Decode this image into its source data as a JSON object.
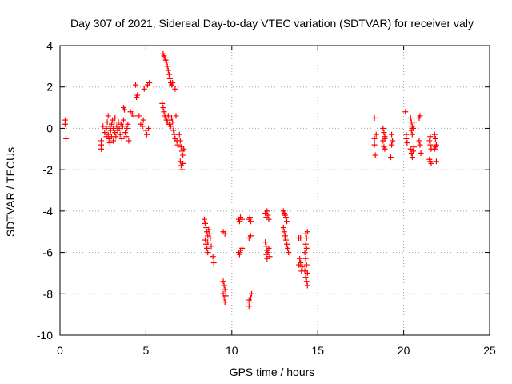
{
  "chart_data": {
    "type": "scatter",
    "title": "Day 307 of 2021, Sidereal Day-to-day VTEC variation (SDTVAR) for receiver valy",
    "xlabel": "GPS time / hours",
    "ylabel": "SDTVAR / TECUs",
    "xlim": [
      0,
      25
    ],
    "ylim": [
      -10,
      4
    ],
    "xticks": [
      0,
      5,
      10,
      15,
      20,
      25
    ],
    "yticks": [
      -10,
      -8,
      -6,
      -4,
      -2,
      0,
      2,
      4
    ],
    "grid": true,
    "legend": "none",
    "marker": "+",
    "color": "#ff0000",
    "series": [
      {
        "points": [
          [
            0.3,
            0.4
          ],
          [
            0.3,
            0.2
          ],
          [
            0.35,
            -0.5
          ],
          [
            2.4,
            -0.6
          ],
          [
            2.4,
            -0.8
          ],
          [
            2.4,
            -1.0
          ],
          [
            2.5,
            0.1
          ],
          [
            2.6,
            -0.2
          ],
          [
            2.7,
            -0.4
          ],
          [
            2.7,
            0.0
          ],
          [
            2.75,
            0.3
          ],
          [
            2.8,
            0.6
          ],
          [
            2.8,
            -0.3
          ],
          [
            2.85,
            -0.5
          ],
          [
            2.9,
            -0.7
          ],
          [
            2.9,
            0.1
          ],
          [
            2.95,
            -0.1
          ],
          [
            3.0,
            0.2
          ],
          [
            3.0,
            -0.4
          ],
          [
            3.05,
            0.4
          ],
          [
            3.1,
            -0.6
          ],
          [
            3.1,
            0.0
          ],
          [
            3.15,
            0.3
          ],
          [
            3.2,
            -0.2
          ],
          [
            3.2,
            0.5
          ],
          [
            3.25,
            -0.4
          ],
          [
            3.3,
            0.1
          ],
          [
            3.35,
            -0.1
          ],
          [
            3.4,
            0.3
          ],
          [
            3.45,
            0.0
          ],
          [
            3.5,
            -0.3
          ],
          [
            3.55,
            0.2
          ],
          [
            3.6,
            -0.5
          ],
          [
            3.65,
            0.1
          ],
          [
            3.7,
            0.4
          ],
          [
            3.7,
            1.0
          ],
          [
            3.75,
            0.9
          ],
          [
            3.8,
            -0.2
          ],
          [
            3.85,
            -0.4
          ],
          [
            3.9,
            0.0
          ],
          [
            3.95,
            0.2
          ],
          [
            4.0,
            -0.6
          ],
          [
            4.1,
            0.8
          ],
          [
            4.2,
            0.7
          ],
          [
            4.3,
            0.6
          ],
          [
            4.4,
            2.1
          ],
          [
            4.45,
            1.5
          ],
          [
            4.5,
            1.6
          ],
          [
            4.6,
            0.6
          ],
          [
            4.7,
            0.2
          ],
          [
            4.8,
            0.1
          ],
          [
            4.85,
            0.4
          ],
          [
            4.9,
            1.9
          ],
          [
            5.0,
            -0.1
          ],
          [
            5.05,
            -0.3
          ],
          [
            5.1,
            2.1
          ],
          [
            5.15,
            0.0
          ],
          [
            5.2,
            2.2
          ],
          [
            6.0,
            3.6
          ],
          [
            6.05,
            3.5
          ],
          [
            6.1,
            3.4
          ],
          [
            6.15,
            3.3
          ],
          [
            6.2,
            3.2
          ],
          [
            6.25,
            3.0
          ],
          [
            6.3,
            2.8
          ],
          [
            6.35,
            2.6
          ],
          [
            6.4,
            2.4
          ],
          [
            6.45,
            2.2
          ],
          [
            6.5,
            2.1
          ],
          [
            6.55,
            2.2
          ],
          [
            5.95,
            1.2
          ],
          [
            6.0,
            1.0
          ],
          [
            6.05,
            0.8
          ],
          [
            6.1,
            0.6
          ],
          [
            6.15,
            0.5
          ],
          [
            6.2,
            0.4
          ],
          [
            6.25,
            0.3
          ],
          [
            6.3,
            0.6
          ],
          [
            6.35,
            0.2
          ],
          [
            6.4,
            0.4
          ],
          [
            6.45,
            0.1
          ],
          [
            6.5,
            0.5
          ],
          [
            6.55,
            0.3
          ],
          [
            6.6,
            -0.1
          ],
          [
            6.65,
            -0.3
          ],
          [
            6.7,
            -0.5
          ],
          [
            6.75,
            0.6
          ],
          [
            6.8,
            -0.6
          ],
          [
            6.85,
            -0.8
          ],
          [
            6.7,
            1.9
          ],
          [
            6.95,
            -0.3
          ],
          [
            7.0,
            -0.6
          ],
          [
            7.05,
            -0.9
          ],
          [
            7.1,
            -1.1
          ],
          [
            7.15,
            -1.3
          ],
          [
            7.2,
            -1.0
          ],
          [
            7.0,
            -1.6
          ],
          [
            7.05,
            -1.8
          ],
          [
            7.1,
            -2.0
          ],
          [
            7.15,
            -1.7
          ],
          [
            8.4,
            -4.4
          ],
          [
            8.45,
            -4.6
          ],
          [
            8.5,
            -4.8
          ],
          [
            8.55,
            -5.0
          ],
          [
            8.6,
            -5.2
          ],
          [
            8.45,
            -5.4
          ],
          [
            8.5,
            -5.6
          ],
          [
            8.55,
            -5.8
          ],
          [
            8.6,
            -5.5
          ],
          [
            8.65,
            -4.9
          ],
          [
            8.7,
            -5.1
          ],
          [
            8.75,
            -5.3
          ],
          [
            8.8,
            -5.7
          ],
          [
            8.6,
            -6.0
          ],
          [
            8.9,
            -6.2
          ],
          [
            8.95,
            -6.5
          ],
          [
            9.5,
            -5.0
          ],
          [
            9.6,
            -5.1
          ],
          [
            9.5,
            -7.4
          ],
          [
            9.55,
            -7.6
          ],
          [
            9.6,
            -7.8
          ],
          [
            9.5,
            -8.0
          ],
          [
            9.55,
            -8.2
          ],
          [
            9.6,
            -8.4
          ],
          [
            9.65,
            -8.1
          ],
          [
            10.4,
            -4.4
          ],
          [
            10.5,
            -4.3
          ],
          [
            10.6,
            -4.4
          ],
          [
            10.45,
            -4.5
          ],
          [
            10.4,
            -6.0
          ],
          [
            10.5,
            -5.9
          ],
          [
            10.6,
            -5.8
          ],
          [
            10.45,
            -6.1
          ],
          [
            11.0,
            -4.4
          ],
          [
            11.05,
            -4.3
          ],
          [
            11.1,
            -4.5
          ],
          [
            11.0,
            -5.3
          ],
          [
            11.1,
            -5.2
          ],
          [
            11.0,
            -8.6
          ],
          [
            11.05,
            -8.4
          ],
          [
            11.1,
            -8.2
          ],
          [
            11.15,
            -8.0
          ],
          [
            11.0,
            -8.3
          ],
          [
            11.95,
            -4.1
          ],
          [
            12.0,
            -4.3
          ],
          [
            12.05,
            -4.0
          ],
          [
            12.1,
            -4.2
          ],
          [
            12.15,
            -4.4
          ],
          [
            11.95,
            -5.5
          ],
          [
            12.0,
            -5.7
          ],
          [
            12.05,
            -5.9
          ],
          [
            12.0,
            -6.1
          ],
          [
            12.05,
            -6.3
          ],
          [
            12.1,
            -6.0
          ],
          [
            12.15,
            -5.8
          ],
          [
            12.2,
            -6.2
          ],
          [
            13.0,
            -4.0
          ],
          [
            13.05,
            -4.1
          ],
          [
            13.1,
            -4.2
          ],
          [
            13.15,
            -4.3
          ],
          [
            13.2,
            -4.5
          ],
          [
            13.0,
            -4.8
          ],
          [
            13.05,
            -5.0
          ],
          [
            13.1,
            -5.2
          ],
          [
            13.15,
            -5.4
          ],
          [
            13.2,
            -5.6
          ],
          [
            13.25,
            -5.8
          ],
          [
            13.3,
            -6.0
          ],
          [
            13.1,
            -5.3
          ],
          [
            13.9,
            -5.3
          ],
          [
            14.0,
            -5.3
          ],
          [
            13.95,
            -6.3
          ],
          [
            14.0,
            -6.5
          ],
          [
            14.1,
            -6.7
          ],
          [
            14.05,
            -6.9
          ],
          [
            13.9,
            -6.6
          ],
          [
            14.3,
            -5.1
          ],
          [
            14.35,
            -5.3
          ],
          [
            14.4,
            -5.0
          ],
          [
            14.3,
            -5.6
          ],
          [
            14.35,
            -5.8
          ],
          [
            14.25,
            -6.0
          ],
          [
            14.3,
            -6.3
          ],
          [
            14.35,
            -6.6
          ],
          [
            14.4,
            -7.0
          ],
          [
            14.3,
            -7.2
          ],
          [
            14.35,
            -7.4
          ],
          [
            14.4,
            -7.6
          ],
          [
            14.25,
            -6.9
          ],
          [
            18.3,
            0.5
          ],
          [
            18.3,
            -0.5
          ],
          [
            18.3,
            -0.8
          ],
          [
            18.35,
            -1.3
          ],
          [
            18.4,
            -0.3
          ],
          [
            18.8,
            0.0
          ],
          [
            18.85,
            -0.2
          ],
          [
            18.9,
            -0.4
          ],
          [
            18.8,
            -0.6
          ],
          [
            18.85,
            -0.9
          ],
          [
            18.9,
            -1.0
          ],
          [
            18.9,
            -0.5
          ],
          [
            19.3,
            -0.3
          ],
          [
            19.35,
            -0.6
          ],
          [
            19.3,
            -0.8
          ],
          [
            19.25,
            -1.4
          ],
          [
            20.1,
            0.8
          ],
          [
            20.15,
            -0.5
          ],
          [
            20.2,
            -0.7
          ],
          [
            20.15,
            -0.3
          ],
          [
            20.4,
            0.5
          ],
          [
            20.45,
            0.3
          ],
          [
            20.5,
            0.1
          ],
          [
            20.45,
            -0.1
          ],
          [
            20.5,
            -0.3
          ],
          [
            20.55,
            0.0
          ],
          [
            20.6,
            0.3
          ],
          [
            20.4,
            -1.0
          ],
          [
            20.45,
            -1.2
          ],
          [
            20.5,
            -1.4
          ],
          [
            20.55,
            -1.1
          ],
          [
            20.6,
            -0.9
          ],
          [
            20.9,
            0.5
          ],
          [
            20.95,
            0.6
          ],
          [
            20.9,
            -0.6
          ],
          [
            20.95,
            -0.8
          ],
          [
            21.0,
            -1.2
          ],
          [
            21.5,
            -0.6
          ],
          [
            21.55,
            -0.8
          ],
          [
            21.6,
            -1.0
          ],
          [
            21.5,
            -1.5
          ],
          [
            21.55,
            -1.6
          ],
          [
            21.6,
            -1.7
          ],
          [
            21.55,
            -0.4
          ],
          [
            21.8,
            -0.3
          ],
          [
            21.85,
            -0.5
          ],
          [
            21.9,
            -0.8
          ],
          [
            21.8,
            -1.0
          ],
          [
            21.9,
            -1.6
          ],
          [
            21.85,
            -0.9
          ]
        ]
      }
    ]
  }
}
